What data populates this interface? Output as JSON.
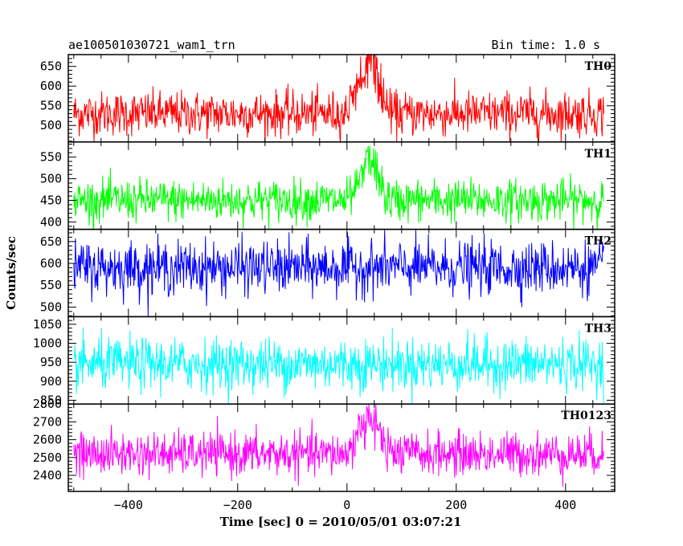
{
  "header": {
    "title": "ae100501030721_wam1_trn",
    "bin_time": "Bin time: 1.0 s"
  },
  "chart_data": {
    "type": "line",
    "xlabel": "Time [sec] 0 = 2010/05/01 03:07:21",
    "ylabel": "Counts/sec",
    "xlim": [
      -510,
      490
    ],
    "xticks": [
      -400,
      -200,
      0,
      200,
      400
    ],
    "xtick_labels": [
      "−400",
      "−200",
      "0",
      "200",
      "400"
    ],
    "x_start": -500,
    "x_end": 470,
    "bin_seconds": 1.0,
    "panels": [
      {
        "name": "TH0",
        "color": "#ff0000",
        "ylim": [
          458,
          680
        ],
        "yticks": [
          500,
          550,
          600,
          650
        ],
        "baseline": 530,
        "noise": 28,
        "burst": 145,
        "burst_start": 0,
        "burst_peak": 45,
        "burst_end": 75
      },
      {
        "name": "TH1",
        "color": "#00ff00",
        "ylim": [
          383,
          585
        ],
        "yticks": [
          400,
          450,
          500,
          550
        ],
        "baseline": 450,
        "noise": 24,
        "burst": 95,
        "burst_start": 0,
        "burst_peak": 45,
        "burst_end": 75
      },
      {
        "name": "TH2",
        "color": "#0000ff",
        "ylim": [
          478,
          678
        ],
        "yticks": [
          500,
          550,
          600,
          650
        ],
        "baseline": 590,
        "noise": 30,
        "burst": 0,
        "burst_start": 0,
        "burst_peak": 45,
        "burst_end": 75
      },
      {
        "name": "TH3",
        "color": "#00ffff",
        "ylim": [
          840,
          1070
        ],
        "yticks": [
          850,
          900,
          950,
          1000,
          1050
        ],
        "baseline": 945,
        "noise": 34,
        "burst": 0,
        "burst_start": 0,
        "burst_peak": 45,
        "burst_end": 75
      },
      {
        "name": "TH0123",
        "color": "#ff00ff",
        "ylim": [
          2310,
          2800
        ],
        "yticks": [
          2400,
          2500,
          2600,
          2700,
          2800
        ],
        "baseline": 2520,
        "noise": 60,
        "burst": 230,
        "burst_start": 0,
        "burst_peak": 45,
        "burst_end": 75
      }
    ]
  }
}
